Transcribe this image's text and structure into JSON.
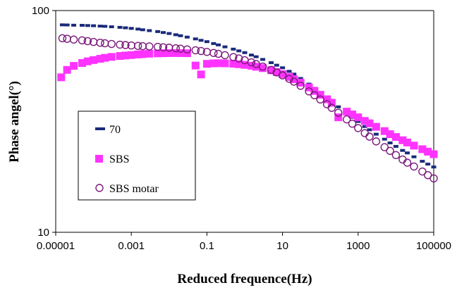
{
  "chart_data": {
    "type": "scatter",
    "title": "",
    "xlabel": "Reduced frequence(Hz)",
    "ylabel": "Phase angel(°)",
    "x_scale": "log",
    "y_scale": "log",
    "xlim": [
      1e-05,
      100000
    ],
    "ylim": [
      10,
      100
    ],
    "x_ticks": [
      "0.00001",
      "0.001",
      "0.1",
      "10",
      "1000",
      "100000"
    ],
    "y_ticks": [
      "10",
      "100"
    ],
    "grid": false,
    "legend_position": "lower-left",
    "series": [
      {
        "name": "70",
        "marker": "dash",
        "color": "#1a2a7a",
        "points": [
          [
            1.5e-05,
            86.2
          ],
          [
            2e-05,
            86.1
          ],
          [
            3e-05,
            85.9
          ],
          [
            5e-05,
            85.8
          ],
          [
            7e-05,
            85.6
          ],
          [
            0.0001,
            85.4
          ],
          [
            0.00015,
            85.1
          ],
          [
            0.0002,
            84.9
          ],
          [
            0.0003,
            84.5
          ],
          [
            0.0005,
            84.0
          ],
          [
            0.0007,
            83.6
          ],
          [
            0.001,
            83.1
          ],
          [
            0.0015,
            82.5
          ],
          [
            0.002,
            81.9
          ],
          [
            0.003,
            81.2
          ],
          [
            0.005,
            80.4
          ],
          [
            0.007,
            79.6
          ],
          [
            0.01,
            78.8
          ],
          [
            0.015,
            77.8
          ],
          [
            0.02,
            77.0
          ],
          [
            0.03,
            75.9
          ],
          [
            0.05,
            74.5
          ],
          [
            0.07,
            73.4
          ],
          [
            0.1,
            72.4
          ],
          [
            0.15,
            71.0
          ],
          [
            0.2,
            70.0
          ],
          [
            0.3,
            68.6
          ],
          [
            0.5,
            67.0
          ],
          [
            0.7,
            65.8
          ],
          [
            1,
            64.6
          ],
          [
            1.5,
            63.0
          ],
          [
            2,
            61.9
          ],
          [
            3,
            60.2
          ],
          [
            5,
            58.2
          ],
          [
            7,
            56.7
          ],
          [
            10,
            55.2
          ],
          [
            15,
            53.2
          ],
          [
            20,
            51.7
          ],
          [
            30,
            49.4
          ],
          [
            50,
            46.6
          ],
          [
            70,
            44.6
          ],
          [
            100,
            42.6
          ],
          [
            150,
            40.4
          ],
          [
            200,
            38.9
          ],
          [
            300,
            36.8
          ],
          [
            500,
            34.5
          ],
          [
            700,
            33.0
          ],
          [
            1000,
            31.6
          ],
          [
            1500,
            30.0
          ],
          [
            2000,
            29.0
          ],
          [
            3000,
            27.7
          ],
          [
            5000,
            26.3
          ],
          [
            7000,
            25.3
          ],
          [
            10000,
            24.4
          ],
          [
            15000,
            23.4
          ],
          [
            20000,
            22.8
          ],
          [
            30000,
            21.9
          ],
          [
            50000,
            20.9
          ],
          [
            70000,
            20.3
          ],
          [
            100000,
            19.7
          ]
        ]
      },
      {
        "name": "SBS",
        "marker": "square",
        "color": "#ff33ff",
        "points": [
          [
            1.4e-05,
            50.0
          ],
          [
            2e-05,
            54.0
          ],
          [
            3e-05,
            56.3
          ],
          [
            5e-05,
            58.0
          ],
          [
            7e-05,
            59.0
          ],
          [
            0.0001,
            59.8
          ],
          [
            0.00015,
            60.6
          ],
          [
            0.0002,
            61.2
          ],
          [
            0.0003,
            61.8
          ],
          [
            0.0005,
            62.4
          ],
          [
            0.0007,
            62.7
          ],
          [
            0.001,
            63.0
          ],
          [
            0.0015,
            63.4
          ],
          [
            0.002,
            63.6
          ],
          [
            0.003,
            63.9
          ],
          [
            0.005,
            64.1
          ],
          [
            0.007,
            64.2
          ],
          [
            0.01,
            64.3
          ],
          [
            0.015,
            64.3
          ],
          [
            0.02,
            64.3
          ],
          [
            0.03,
            64.2
          ],
          [
            0.05,
            56.5
          ],
          [
            0.07,
            51.5
          ],
          [
            0.1,
            57.5
          ],
          [
            0.15,
            57.8
          ],
          [
            0.2,
            57.9
          ],
          [
            0.3,
            57.8
          ],
          [
            0.5,
            57.6
          ],
          [
            0.7,
            57.3
          ],
          [
            1,
            56.9
          ],
          [
            1.5,
            56.4
          ],
          [
            2,
            55.8
          ],
          [
            3,
            55.0
          ],
          [
            5,
            53.8
          ],
          [
            7,
            52.8
          ],
          [
            10,
            51.7
          ],
          [
            15,
            50.2
          ],
          [
            20,
            49.0
          ],
          [
            30,
            47.3
          ],
          [
            50,
            45.0
          ],
          [
            70,
            43.4
          ],
          [
            100,
            41.7
          ],
          [
            150,
            39.8
          ],
          [
            200,
            38.4
          ],
          [
            300,
            33.0
          ],
          [
            500,
            35.0
          ],
          [
            700,
            34.0
          ],
          [
            1000,
            33.0
          ],
          [
            1500,
            31.8
          ],
          [
            2000,
            31.0
          ],
          [
            3000,
            29.9
          ],
          [
            5000,
            28.6
          ],
          [
            7000,
            27.7
          ],
          [
            10000,
            26.9
          ],
          [
            15000,
            26.0
          ],
          [
            20000,
            25.4
          ],
          [
            30000,
            24.6
          ],
          [
            50000,
            23.7
          ],
          [
            70000,
            23.1
          ],
          [
            100000,
            22.5
          ]
        ]
      },
      {
        "name": "SBS motar",
        "marker": "circle-open",
        "color": "#7a1a7a",
        "points": [
          [
            1.5e-05,
            75.0
          ],
          [
            2e-05,
            74.6
          ],
          [
            3e-05,
            74.0
          ],
          [
            5e-05,
            73.4
          ],
          [
            7e-05,
            72.8
          ],
          [
            0.0001,
            72.2
          ],
          [
            0.00015,
            71.6
          ],
          [
            0.0002,
            71.2
          ],
          [
            0.0003,
            70.7
          ],
          [
            0.0005,
            70.2
          ],
          [
            0.0007,
            69.9
          ],
          [
            0.001,
            69.6
          ],
          [
            0.0015,
            69.3
          ],
          [
            0.002,
            69.1
          ],
          [
            0.003,
            68.9
          ],
          [
            0.005,
            68.6
          ],
          [
            0.007,
            68.3
          ],
          [
            0.01,
            68.0
          ],
          [
            0.015,
            67.6
          ],
          [
            0.02,
            67.3
          ],
          [
            0.03,
            66.8
          ],
          [
            0.05,
            66.2
          ],
          [
            0.07,
            65.7
          ],
          [
            0.1,
            65.1
          ],
          [
            0.15,
            64.4
          ],
          [
            0.2,
            63.8
          ],
          [
            0.3,
            62.9
          ],
          [
            0.5,
            61.7
          ],
          [
            0.7,
            60.8
          ],
          [
            1,
            59.7
          ],
          [
            1.5,
            58.4
          ],
          [
            2,
            57.4
          ],
          [
            3,
            55.9
          ],
          [
            5,
            54.0
          ],
          [
            7,
            52.6
          ],
          [
            10,
            51.0
          ],
          [
            15,
            49.2
          ],
          [
            20,
            47.8
          ],
          [
            30,
            45.8
          ],
          [
            50,
            43.2
          ],
          [
            70,
            41.5
          ],
          [
            100,
            39.7
          ],
          [
            150,
            37.8
          ],
          [
            200,
            36.4
          ],
          [
            300,
            34.6
          ],
          [
            500,
            32.3
          ],
          [
            700,
            30.9
          ],
          [
            1000,
            29.5
          ],
          [
            1500,
            28.0
          ],
          [
            2000,
            27.0
          ],
          [
            3000,
            25.7
          ],
          [
            5000,
            24.2
          ],
          [
            7000,
            23.3
          ],
          [
            10000,
            22.3
          ],
          [
            15000,
            21.3
          ],
          [
            20000,
            20.6
          ],
          [
            30000,
            19.8
          ],
          [
            50000,
            18.8
          ],
          [
            70000,
            18.1
          ],
          [
            100000,
            17.5
          ]
        ]
      }
    ]
  }
}
